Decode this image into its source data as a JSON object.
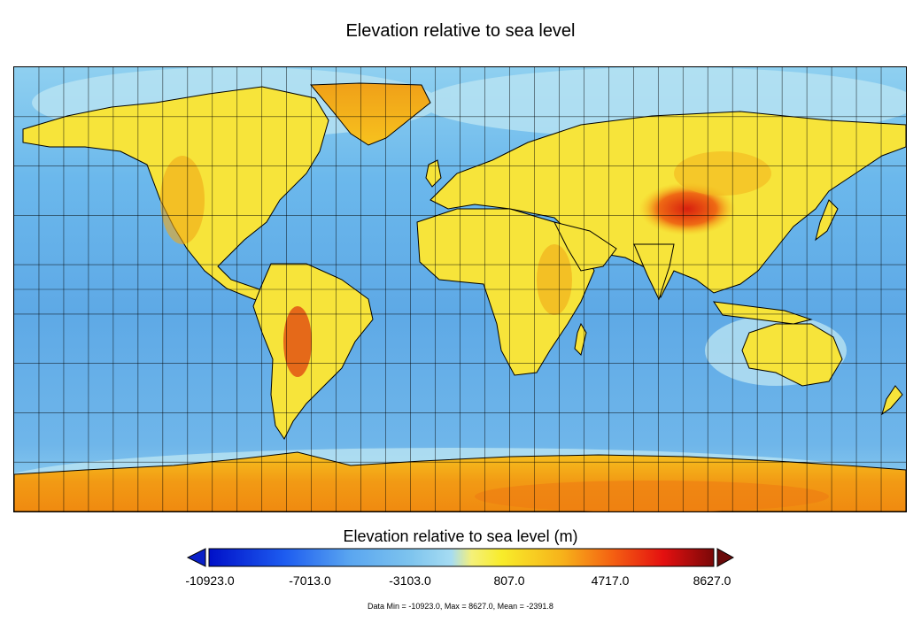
{
  "map": {
    "title": "Elevation relative to sea level",
    "projection": "equirectangular",
    "grid": "on",
    "colors": {
      "deep_ocean": "#0a1ed8",
      "ocean": "#5aa8e8",
      "shallow": "#a8dcf2",
      "lowland": "#f7ea3a",
      "upland": "#f7c21e",
      "highland": "#f08a10",
      "peak": "#d42010",
      "coastline": "#000000"
    },
    "legend_icons": [
      "under-range-arrow-icon",
      "over-range-arrow-icon"
    ]
  },
  "colorbar": {
    "title": "Elevation relative to sea level (m)",
    "min": -10923.0,
    "max": 8627.0,
    "ticks": [
      "-10923.0",
      "-7013.0",
      "-3103.0",
      "807.0",
      "4717.0",
      "8627.0"
    ]
  },
  "stats": {
    "text": "Data Min = -10923.0, Max = 8627.0, Mean = -2391.8"
  }
}
